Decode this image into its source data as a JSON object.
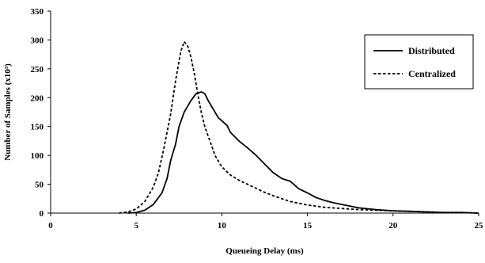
{
  "chart_data": {
    "type": "line",
    "title": "",
    "xlabel": "Queueing Delay (ms)",
    "ylabel": "Number of Samples (x10³)",
    "xlim": [
      0,
      25
    ],
    "ylim": [
      0,
      350
    ],
    "x_ticks": [
      "0",
      "5",
      "10",
      "15",
      "20",
      "25"
    ],
    "y_ticks": [
      "0",
      "50",
      "100",
      "150",
      "200",
      "250",
      "300",
      "350"
    ],
    "grid": false,
    "legend_position": "top-right",
    "series": [
      {
        "name": "Distributed",
        "line_style": "solid",
        "color": "#000000",
        "x": [
          4.5,
          5,
          5.5,
          6,
          6.5,
          6.8,
          7,
          7.3,
          7.5,
          7.8,
          8,
          8.2,
          8.5,
          8.8,
          9,
          9.2,
          9.5,
          9.8,
          10,
          10.3,
          10.5,
          11,
          11.5,
          12,
          12.5,
          13,
          13.5,
          14,
          14.5,
          15,
          15.5,
          16,
          16.5,
          17,
          17.5,
          18,
          19,
          20,
          21,
          22,
          23,
          24,
          25
        ],
        "y": [
          0,
          1,
          5,
          15,
          35,
          60,
          90,
          120,
          150,
          175,
          185,
          195,
          207,
          210,
          207,
          195,
          180,
          165,
          160,
          152,
          140,
          125,
          113,
          100,
          85,
          70,
          60,
          55,
          42,
          35,
          27,
          22,
          18,
          15,
          12,
          9,
          6,
          4,
          3,
          2,
          1,
          1,
          0
        ]
      },
      {
        "name": "Centralized",
        "line_style": "dashed",
        "color": "#000000",
        "x": [
          4,
          4.5,
          5,
          5.5,
          6,
          6.3,
          6.6,
          7,
          7.3,
          7.6,
          7.8,
          8,
          8.2,
          8.4,
          8.6,
          8.8,
          9,
          9.3,
          9.6,
          10,
          10.5,
          11,
          11.5,
          12,
          12.5,
          13,
          13.5,
          14,
          15,
          16,
          17,
          18,
          19,
          20,
          21,
          22,
          23,
          24,
          25
        ],
        "y": [
          0,
          2,
          7,
          20,
          45,
          70,
          110,
          170,
          230,
          280,
          297,
          290,
          270,
          240,
          205,
          175,
          150,
          125,
          100,
          80,
          66,
          57,
          50,
          43,
          36,
          30,
          25,
          20,
          14,
          10,
          8,
          6,
          5,
          4,
          3,
          2,
          1,
          1,
          0
        ]
      }
    ]
  }
}
